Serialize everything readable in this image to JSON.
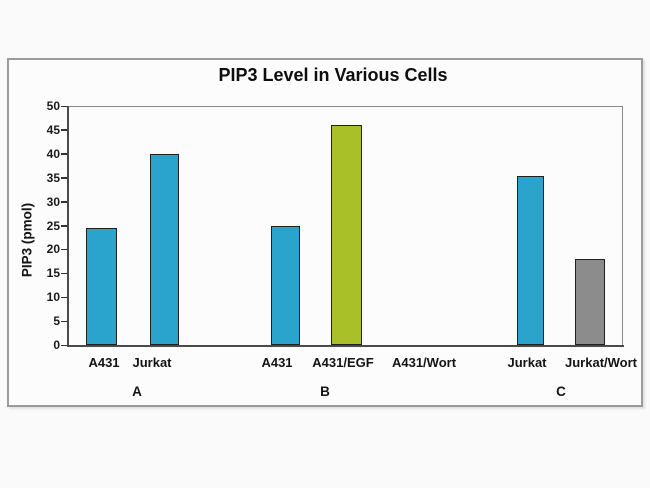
{
  "page": {
    "background_color": "#fafafa",
    "panel_border_color": "#9b9b9b"
  },
  "chart_data": {
    "type": "bar",
    "title": "PIP3 Level in Various Cells",
    "xlabel": "",
    "ylabel": "PIP3 (pmol)",
    "ylim": [
      0,
      50
    ],
    "ytick_step": 5,
    "yticks": [
      0,
      5,
      10,
      15,
      20,
      25,
      30,
      35,
      40,
      45,
      50
    ],
    "grid": false,
    "legend_position": "none",
    "bar_outline_color": "#1f1f1f",
    "categories": [
      "A431",
      "Jurkat",
      "A431",
      "A431/EGF",
      "A431/Wort",
      "Jurkat",
      "Jurkat/Wort"
    ],
    "bars": [
      {
        "label": "A431",
        "group": "A",
        "value": 24.5,
        "color": "#2aa3cd"
      },
      {
        "label": "Jurkat",
        "group": "A",
        "value": 40,
        "color": "#2aa3cd"
      },
      {
        "label": "A431",
        "group": "B",
        "value": 25,
        "color": "#2aa3cd"
      },
      {
        "label": "A431/EGF",
        "group": "B",
        "value": 46,
        "color": "#a9c029"
      },
      {
        "label": "A431/Wort",
        "group": "B",
        "value": 0,
        "color": "none"
      },
      {
        "label": "Jurkat",
        "group": "C",
        "value": 35.3,
        "color": "#2aa3cd"
      },
      {
        "label": "Jurkat/Wort",
        "group": "C",
        "value": 18,
        "color": "#8c8c8c"
      }
    ],
    "group_labels": [
      "A",
      "B",
      "C"
    ]
  }
}
